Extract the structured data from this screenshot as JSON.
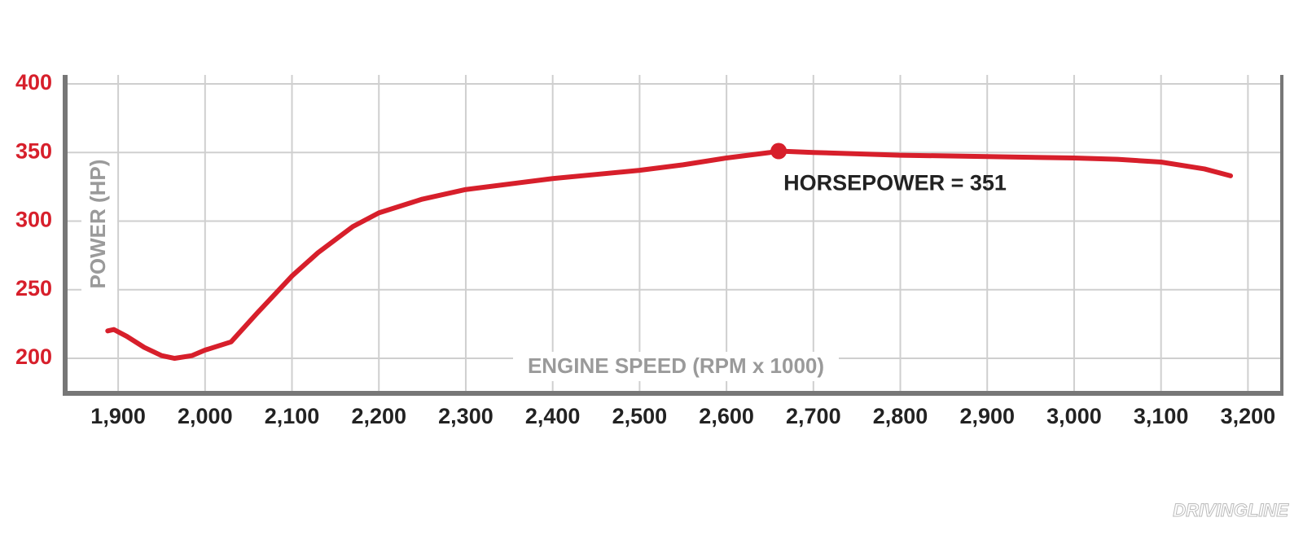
{
  "chart_data": {
    "type": "line",
    "x_label": "ENGINE SPEED (RPM x 1000)",
    "y_label": "POWER (HP)",
    "annotation": "HORSEPOWER = 351",
    "peak": {
      "x": 2660,
      "value": 351
    },
    "watermark": "DRIVINGLINE",
    "xlim": [
      1839,
      3239
    ],
    "ylim": [
      174.5,
      406.5
    ],
    "xticks": [
      {
        "value": 1900,
        "label": "1,900"
      },
      {
        "value": 2000,
        "label": "2,000"
      },
      {
        "value": 2100,
        "label": "2,100"
      },
      {
        "value": 2200,
        "label": "2,200"
      },
      {
        "value": 2300,
        "label": "2,300"
      },
      {
        "value": 2400,
        "label": "2,400"
      },
      {
        "value": 2500,
        "label": "2,500"
      },
      {
        "value": 2600,
        "label": "2,600"
      },
      {
        "value": 2700,
        "label": "2,700"
      },
      {
        "value": 2800,
        "label": "2,800"
      },
      {
        "value": 2900,
        "label": "2,900"
      },
      {
        "value": 3000,
        "label": "3,000"
      },
      {
        "value": 3100,
        "label": "3,100"
      },
      {
        "value": 3200,
        "label": "3,200"
      }
    ],
    "yticks": [
      200,
      250,
      300,
      350,
      400
    ],
    "grid": true,
    "series": [
      {
        "color": "#d71f2b",
        "x": [
          1888,
          1895,
          1910,
          1930,
          1950,
          1965,
          1985,
          2000,
          2030,
          2060,
          2100,
          2130,
          2170,
          2200,
          2250,
          2300,
          2400,
          2450,
          2500,
          2550,
          2600,
          2650,
          2660,
          2700,
          2750,
          2800,
          2900,
          3000,
          3050,
          3100,
          3150,
          3180
        ],
        "values": [
          220,
          221,
          216,
          208,
          202,
          200,
          202,
          206,
          212,
          233,
          260,
          277,
          296,
          306,
          316,
          323,
          331,
          334,
          337,
          341,
          346,
          350,
          351,
          350,
          349,
          348,
          347,
          346,
          345,
          343,
          338,
          333
        ]
      }
    ]
  }
}
